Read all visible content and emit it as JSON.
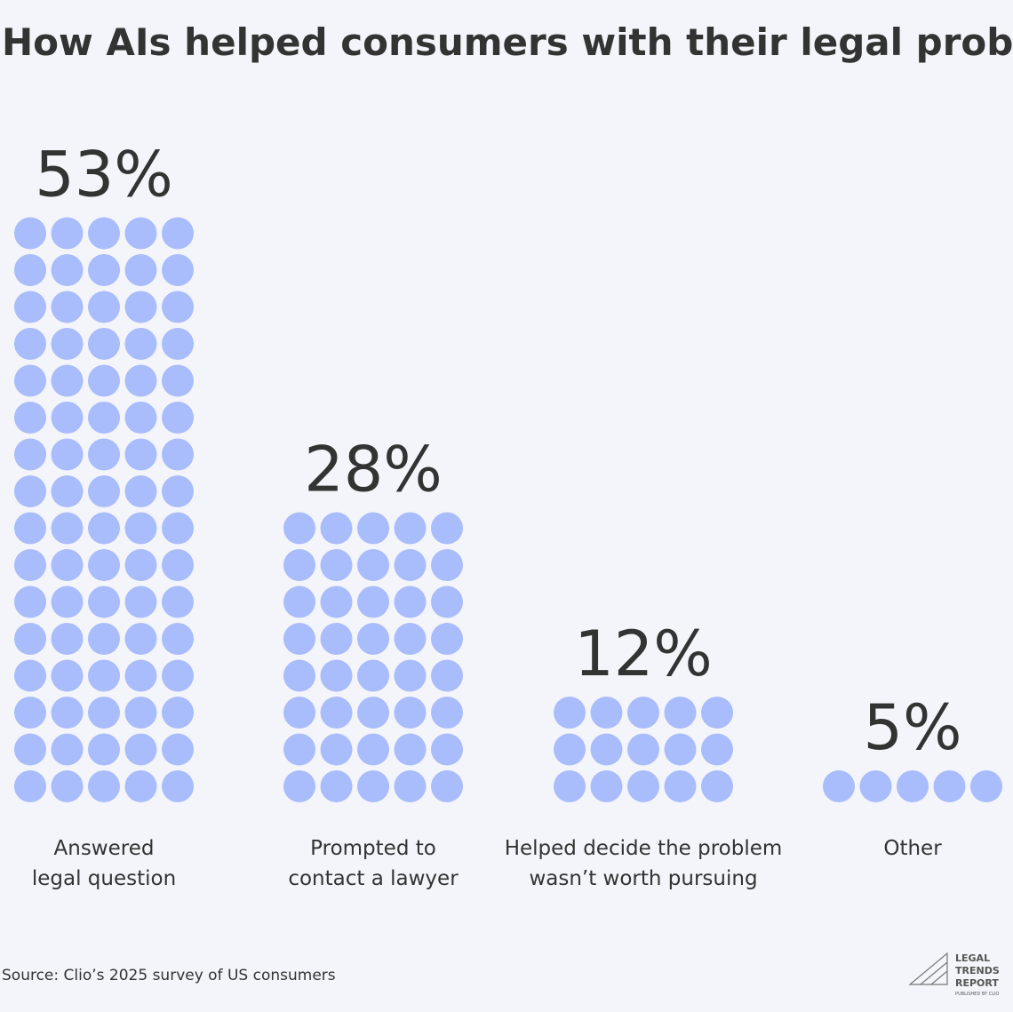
{
  "chart_data": {
    "type": "pictograph",
    "title": "How AIs helped consumers with their legal problems",
    "categories": [
      "Answered\nlegal question",
      "Prompted to\ncontact a lawyer",
      "Helped decide the problem\nwasn’t worth pursuing",
      "Other"
    ],
    "values": [
      53,
      28,
      12,
      5
    ],
    "value_labels": [
      "53%",
      "28%",
      "12%",
      "5%"
    ],
    "color": "#a9bcfb",
    "source": "Source: Clio’s 2025 survey of US consumers",
    "logo": [
      "LEGAL",
      "TRENDS",
      "REPORT"
    ],
    "logo_sub": "PUBLISHED BY CLIO"
  }
}
